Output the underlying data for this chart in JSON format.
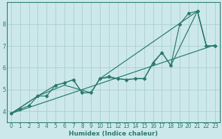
{
  "xlabel": "Humidex (Indice chaleur)",
  "ylabel": "",
  "bg_color": "#cce8eb",
  "grid_color": "#aacdd2",
  "line_color": "#2a7a6a",
  "xlim": [
    -0.5,
    23.5
  ],
  "ylim": [
    3.5,
    9.0
  ],
  "xticks": [
    0,
    1,
    2,
    3,
    4,
    5,
    6,
    7,
    8,
    9,
    10,
    11,
    12,
    13,
    14,
    15,
    16,
    17,
    18,
    19,
    20,
    21,
    22,
    23
  ],
  "yticks": [
    4,
    5,
    6,
    7,
    8
  ],
  "lines": [
    {
      "x": [
        0,
        1,
        2,
        3,
        4,
        5,
        6,
        7,
        8,
        9,
        10,
        11,
        12,
        13,
        14,
        15,
        16,
        17,
        18,
        19,
        20,
        21,
        22,
        23
      ],
      "y": [
        3.9,
        4.1,
        4.25,
        4.7,
        4.7,
        5.2,
        5.3,
        5.45,
        4.85,
        4.85,
        5.5,
        5.6,
        5.5,
        5.45,
        5.5,
        5.5,
        6.2,
        6.7,
        6.1,
        8.0,
        8.5,
        8.6,
        7.0,
        7.0
      ],
      "marker": true
    },
    {
      "x": [
        0,
        23
      ],
      "y": [
        3.9,
        7.05
      ],
      "marker": false
    },
    {
      "x": [
        0,
        3,
        6,
        9,
        10,
        11,
        12,
        13,
        14,
        15,
        16,
        17,
        18,
        21,
        22,
        23
      ],
      "y": [
        3.9,
        4.7,
        5.2,
        4.85,
        5.5,
        5.55,
        5.5,
        5.45,
        5.5,
        5.5,
        6.25,
        6.7,
        6.1,
        8.6,
        7.0,
        7.0
      ],
      "marker": false
    },
    {
      "x": [
        0,
        3,
        5,
        6,
        7,
        8,
        9,
        10,
        21,
        22,
        23
      ],
      "y": [
        3.9,
        4.7,
        5.2,
        5.3,
        5.45,
        4.85,
        4.85,
        5.5,
        8.6,
        7.0,
        7.0
      ],
      "marker": false
    }
  ]
}
